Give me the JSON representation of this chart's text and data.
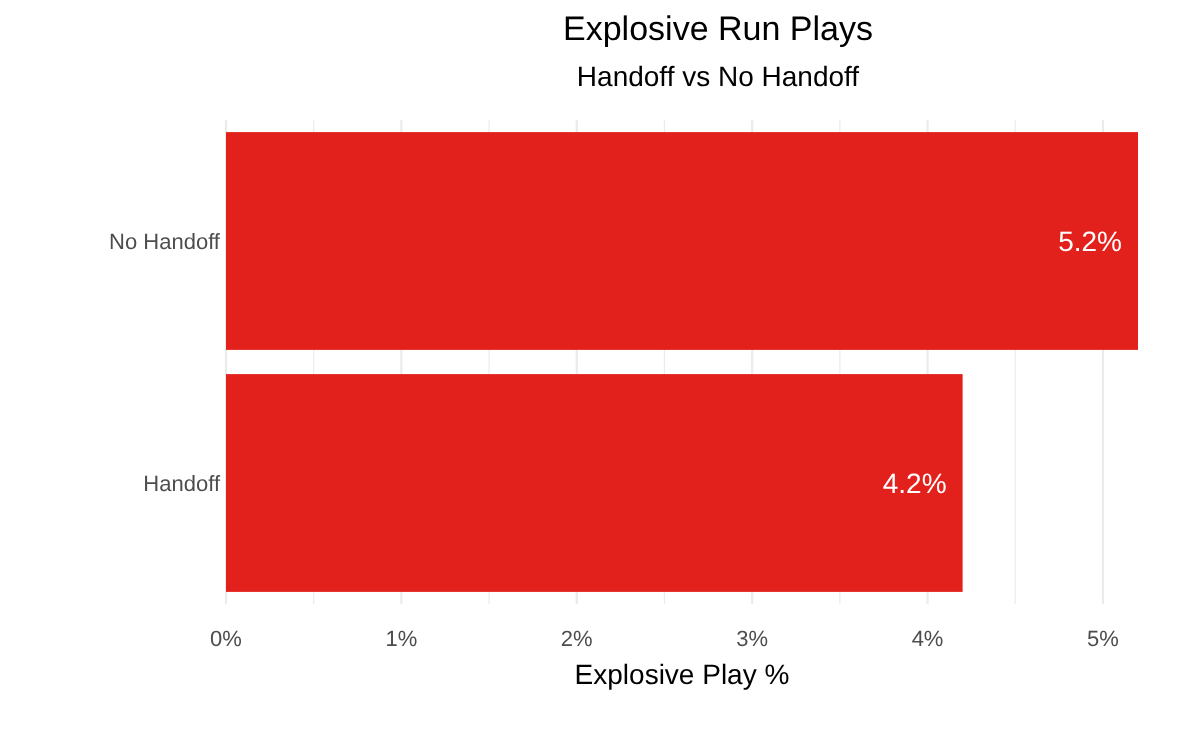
{
  "chart_data": {
    "type": "bar",
    "orientation": "horizontal",
    "title": "Explosive Run Plays",
    "subtitle": "Handoff vs No Handoff",
    "xlabel": "Explosive Play %",
    "categories": [
      "No Handoff",
      "Handoff"
    ],
    "values": [
      5.2,
      4.2
    ],
    "color": "#e3211c",
    "value_labels": [
      "5.2%",
      "4.2%"
    ],
    "xlim": [
      0,
      5.2
    ],
    "xticks": [
      {
        "value": 0,
        "label": "0%"
      },
      {
        "value": 0.5,
        "label": null
      },
      {
        "value": 1,
        "label": "1%"
      },
      {
        "value": 1.5,
        "label": null
      },
      {
        "value": 2,
        "label": "2%"
      },
      {
        "value": 2.5,
        "label": null
      },
      {
        "value": 3,
        "label": "3%"
      },
      {
        "value": 3.5,
        "label": null
      },
      {
        "value": 4,
        "label": "4%"
      },
      {
        "value": 4.5,
        "label": null
      },
      {
        "value": 5,
        "label": "5%"
      }
    ],
    "grid": "x"
  }
}
